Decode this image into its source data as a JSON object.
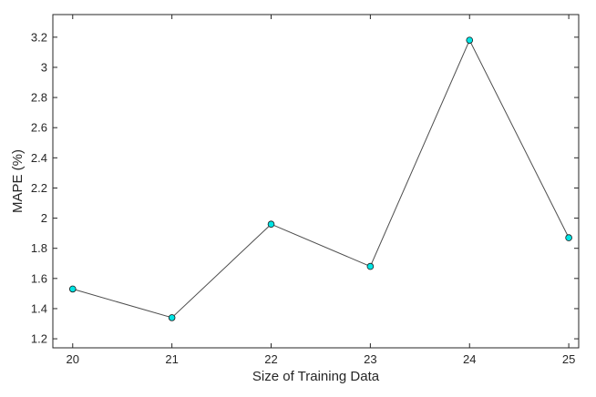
{
  "chart_data": {
    "type": "line",
    "title": "",
    "xlabel": "Size of Training Data",
    "ylabel": "MAPE (%)",
    "x": [
      20,
      21,
      22,
      23,
      24,
      25
    ],
    "series": [
      {
        "values": [
          1.53,
          1.34,
          1.96,
          1.68,
          3.18,
          1.87
        ]
      }
    ],
    "xlim": [
      19.8,
      25.1
    ],
    "ylim": [
      1.14,
      3.35
    ],
    "xticks": [
      20,
      21,
      22,
      23,
      24,
      25
    ],
    "xtick_labels": [
      "20",
      "21",
      "22",
      "23",
      "24",
      "25"
    ],
    "yticks": [
      1.2,
      1.4,
      1.6,
      1.8,
      2.0,
      2.2,
      2.4,
      2.6,
      2.8,
      3.0,
      3.2
    ],
    "ytick_labels": [
      "1.2",
      "1.4",
      "1.6",
      "1.8",
      "2",
      "2.2",
      "2.4",
      "2.6",
      "2.8",
      "3",
      "3.2"
    ],
    "grid": false,
    "box": true,
    "colors": {
      "line": "#4d4d4d",
      "marker_fill": "#00e5e5",
      "marker_edge": "#1a1a1a",
      "axis": "#262626"
    }
  }
}
